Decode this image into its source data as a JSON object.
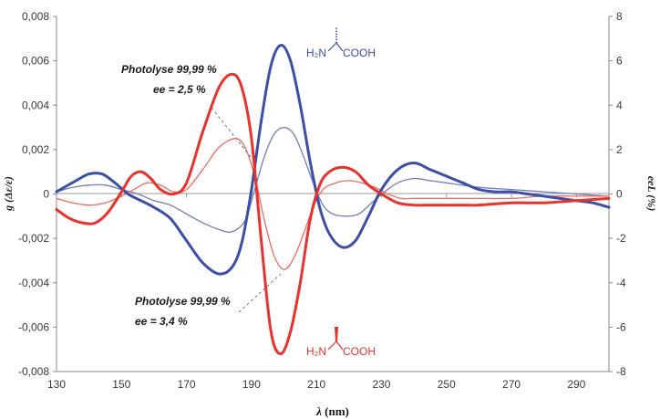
{
  "chart_data": {
    "type": "line",
    "xlabel_var": "λ",
    "xlabel_unit": "(nm)",
    "ylabel_left_var": "g",
    "ylabel_left_unit": "(Δε/ε)",
    "ylabel_right_var": "ee",
    "ylabel_right_unit": "L (%)",
    "xlim": [
      130,
      300
    ],
    "ylim_left": [
      -0.008,
      0.008
    ],
    "ylim_right": [
      -8,
      8
    ],
    "x_ticks": [
      "130",
      "150",
      "170",
      "190",
      "210",
      "230",
      "250",
      "270",
      "290"
    ],
    "y_ticks_left": [
      "0,008",
      "0,006",
      "0,004",
      "0,002",
      "0",
      "-0,002",
      "-0,004",
      "-0,006",
      "-0,008"
    ],
    "y_ticks_right": [
      "8",
      "6",
      "4",
      "2",
      "0",
      "-2",
      "-4",
      "-6",
      "-8"
    ],
    "grid": false,
    "annotations": [
      {
        "line1": "Photolyse 99,99 %",
        "line2": "ee = 2,5 %"
      },
      {
        "line1": "Photolyse 99,99 %",
        "line2": "ee = 3,4 %"
      }
    ],
    "molecule_labels": {
      "top": "H₂N",
      "top_acid": "COOH",
      "bottom": "H₂N",
      "bottom_acid": "COOH"
    },
    "colors": {
      "blue": "#3b4fa6",
      "red": "#e8322b",
      "light_blue": "#6f7fbd",
      "light_red": "#ef6a5e"
    },
    "series": [
      {
        "color": "blue",
        "width": "thick",
        "x": [
          130,
          136,
          140,
          144,
          148,
          152,
          156,
          160,
          165,
          170,
          175,
          180,
          184,
          187,
          190,
          193,
          196,
          199,
          202,
          205,
          208,
          211,
          214,
          218,
          222,
          226,
          230,
          235,
          240,
          245,
          250,
          255,
          260,
          265,
          270,
          275,
          280,
          285,
          290,
          295,
          300
        ],
        "y": [
          0.0001,
          0.0006,
          0.0009,
          0.0009,
          0.0005,
          0.0,
          -0.0003,
          -0.0006,
          -0.0011,
          -0.0021,
          -0.0031,
          -0.0036,
          -0.0033,
          -0.0022,
          0.0002,
          0.0033,
          0.0058,
          0.0067,
          0.006,
          0.004,
          0.0015,
          -0.0006,
          -0.0018,
          -0.0024,
          -0.0021,
          -0.001,
          0.0002,
          0.0011,
          0.0014,
          0.0011,
          0.0008,
          0.0005,
          0.0002,
          0.0001,
          0.0001,
          0.0,
          -0.0001,
          -0.0002,
          -0.0003,
          -0.0004,
          -0.0006
        ]
      },
      {
        "color": "red",
        "width": "thick",
        "x": [
          130,
          134,
          138,
          142,
          146,
          150,
          153,
          156,
          159,
          162,
          166,
          170,
          175,
          180,
          184,
          187,
          190,
          193,
          196,
          199,
          202,
          205,
          208,
          211,
          214,
          218,
          222,
          226,
          230,
          235,
          240,
          245,
          250,
          255,
          260,
          270,
          280,
          290,
          300
        ],
        "y": [
          -0.0007,
          -0.0011,
          -0.0013,
          -0.0013,
          -0.0008,
          0.0001,
          0.0008,
          0.001,
          0.0007,
          0.0002,
          0.0,
          0.0005,
          0.0028,
          0.0048,
          0.0054,
          0.0048,
          0.0025,
          -0.0021,
          -0.0062,
          -0.0072,
          -0.0062,
          -0.004,
          -0.0012,
          0.0004,
          0.001,
          0.0012,
          0.001,
          0.0004,
          0.0,
          -0.0004,
          -0.0005,
          -0.0005,
          -0.0005,
          -0.0005,
          -0.0005,
          -0.0004,
          -0.0004,
          -0.0003,
          -0.0002
        ]
      },
      {
        "color": "light_blue",
        "width": "thin",
        "x": [
          130,
          135,
          140,
          145,
          150,
          155,
          160,
          165,
          170,
          175,
          180,
          184,
          188,
          191,
          194,
          197,
          200,
          203,
          206,
          209,
          212,
          215,
          219,
          223,
          227,
          231,
          235,
          240,
          245,
          250,
          260,
          270,
          280,
          290,
          300
        ],
        "y": [
          0.0001,
          0.0003,
          0.0004,
          0.0004,
          0.0002,
          0.0,
          -0.0003,
          -0.0005,
          -0.0009,
          -0.0013,
          -0.0016,
          -0.0017,
          -0.0012,
          0.0002,
          0.0017,
          0.0027,
          0.003,
          0.0027,
          0.0017,
          0.0005,
          -0.0005,
          -0.0009,
          -0.001,
          -0.0009,
          -0.0004,
          0.0001,
          0.0005,
          0.0007,
          0.0006,
          0.0005,
          0.0003,
          0.0002,
          0.0001,
          0.0,
          -0.0001
        ]
      },
      {
        "color": "light_red",
        "width": "thin",
        "x": [
          130,
          135,
          140,
          145,
          150,
          155,
          158,
          162,
          166,
          170,
          175,
          180,
          185,
          188,
          191,
          194,
          197,
          200,
          203,
          206,
          209,
          212,
          216,
          220,
          224,
          228,
          232,
          236,
          240,
          250,
          260,
          270,
          280,
          290,
          300
        ],
        "y": [
          -0.0002,
          -0.0004,
          -0.0005,
          -0.0004,
          -0.0001,
          0.0003,
          0.0005,
          0.0004,
          0.0001,
          0.0002,
          0.0011,
          0.0021,
          0.0025,
          0.0021,
          0.0008,
          -0.0012,
          -0.0028,
          -0.0034,
          -0.0029,
          -0.0018,
          -0.0006,
          0.0002,
          0.0005,
          0.0006,
          0.0005,
          0.0003,
          0.0,
          -0.0002,
          -0.0002,
          -0.0002,
          -0.0002,
          -0.0002,
          -0.0001,
          -0.0001,
          -0.0001
        ]
      }
    ]
  }
}
